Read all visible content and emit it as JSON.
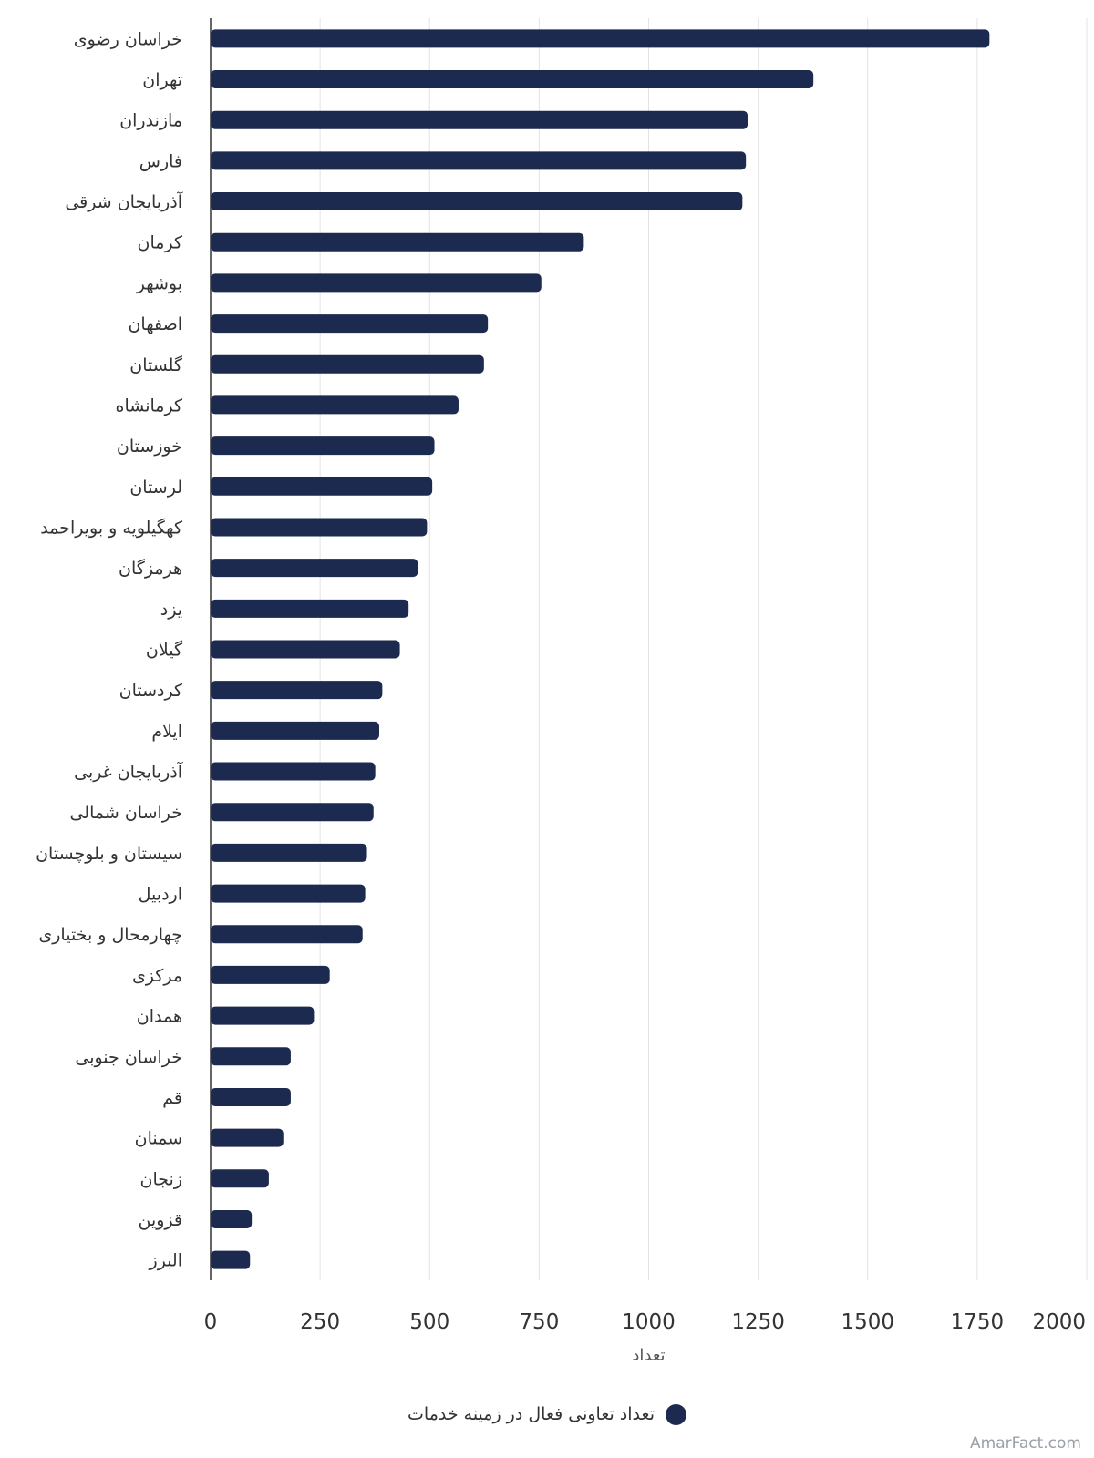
{
  "chart_data": {
    "type": "bar",
    "orientation": "horizontal",
    "categories": [
      "خراسان رضوی",
      "تهران",
      "مازندران",
      "فارس",
      "آذربایجان شرقی",
      "کرمان",
      "بوشهر",
      "اصفهان",
      "گلستان",
      "کرمانشاه",
      "خوزستان",
      "لرستان",
      "کهگیلویه و بویراحمد",
      "هرمزگان",
      "یزد",
      "گیلان",
      "کردستان",
      "ایلام",
      "آذربایجان غربی",
      "خراسان شمالی",
      "سیستان و بلوچستان",
      "اردبیل",
      "چهارمحال و بختیاری",
      "مرکزی",
      "همدان",
      "خراسان جنوبی",
      "قم",
      "سمنان",
      "زنجان",
      "قزوین",
      "البرز"
    ],
    "series": [
      {
        "name": "تعداد تعاونی فعال در زمینه خدمات",
        "color": "#1b2a4e",
        "values": [
          1778,
          1376,
          1226,
          1222,
          1214,
          852,
          755,
          633,
          624,
          566,
          511,
          506,
          494,
          473,
          452,
          432,
          392,
          385,
          376,
          372,
          357,
          353,
          347,
          272,
          236,
          183,
          183,
          166,
          133,
          94,
          90
        ]
      }
    ],
    "xlabel": "تعداد",
    "xlim": [
      0,
      2000
    ],
    "xticks": [
      0,
      250,
      500,
      750,
      1000,
      1250,
      1500,
      1750,
      2000
    ],
    "grid": true,
    "legend_position": "bottom"
  },
  "legend": {
    "label": "تعداد تعاونی فعال در زمینه خدمات"
  },
  "watermark": "AmarFact.com"
}
